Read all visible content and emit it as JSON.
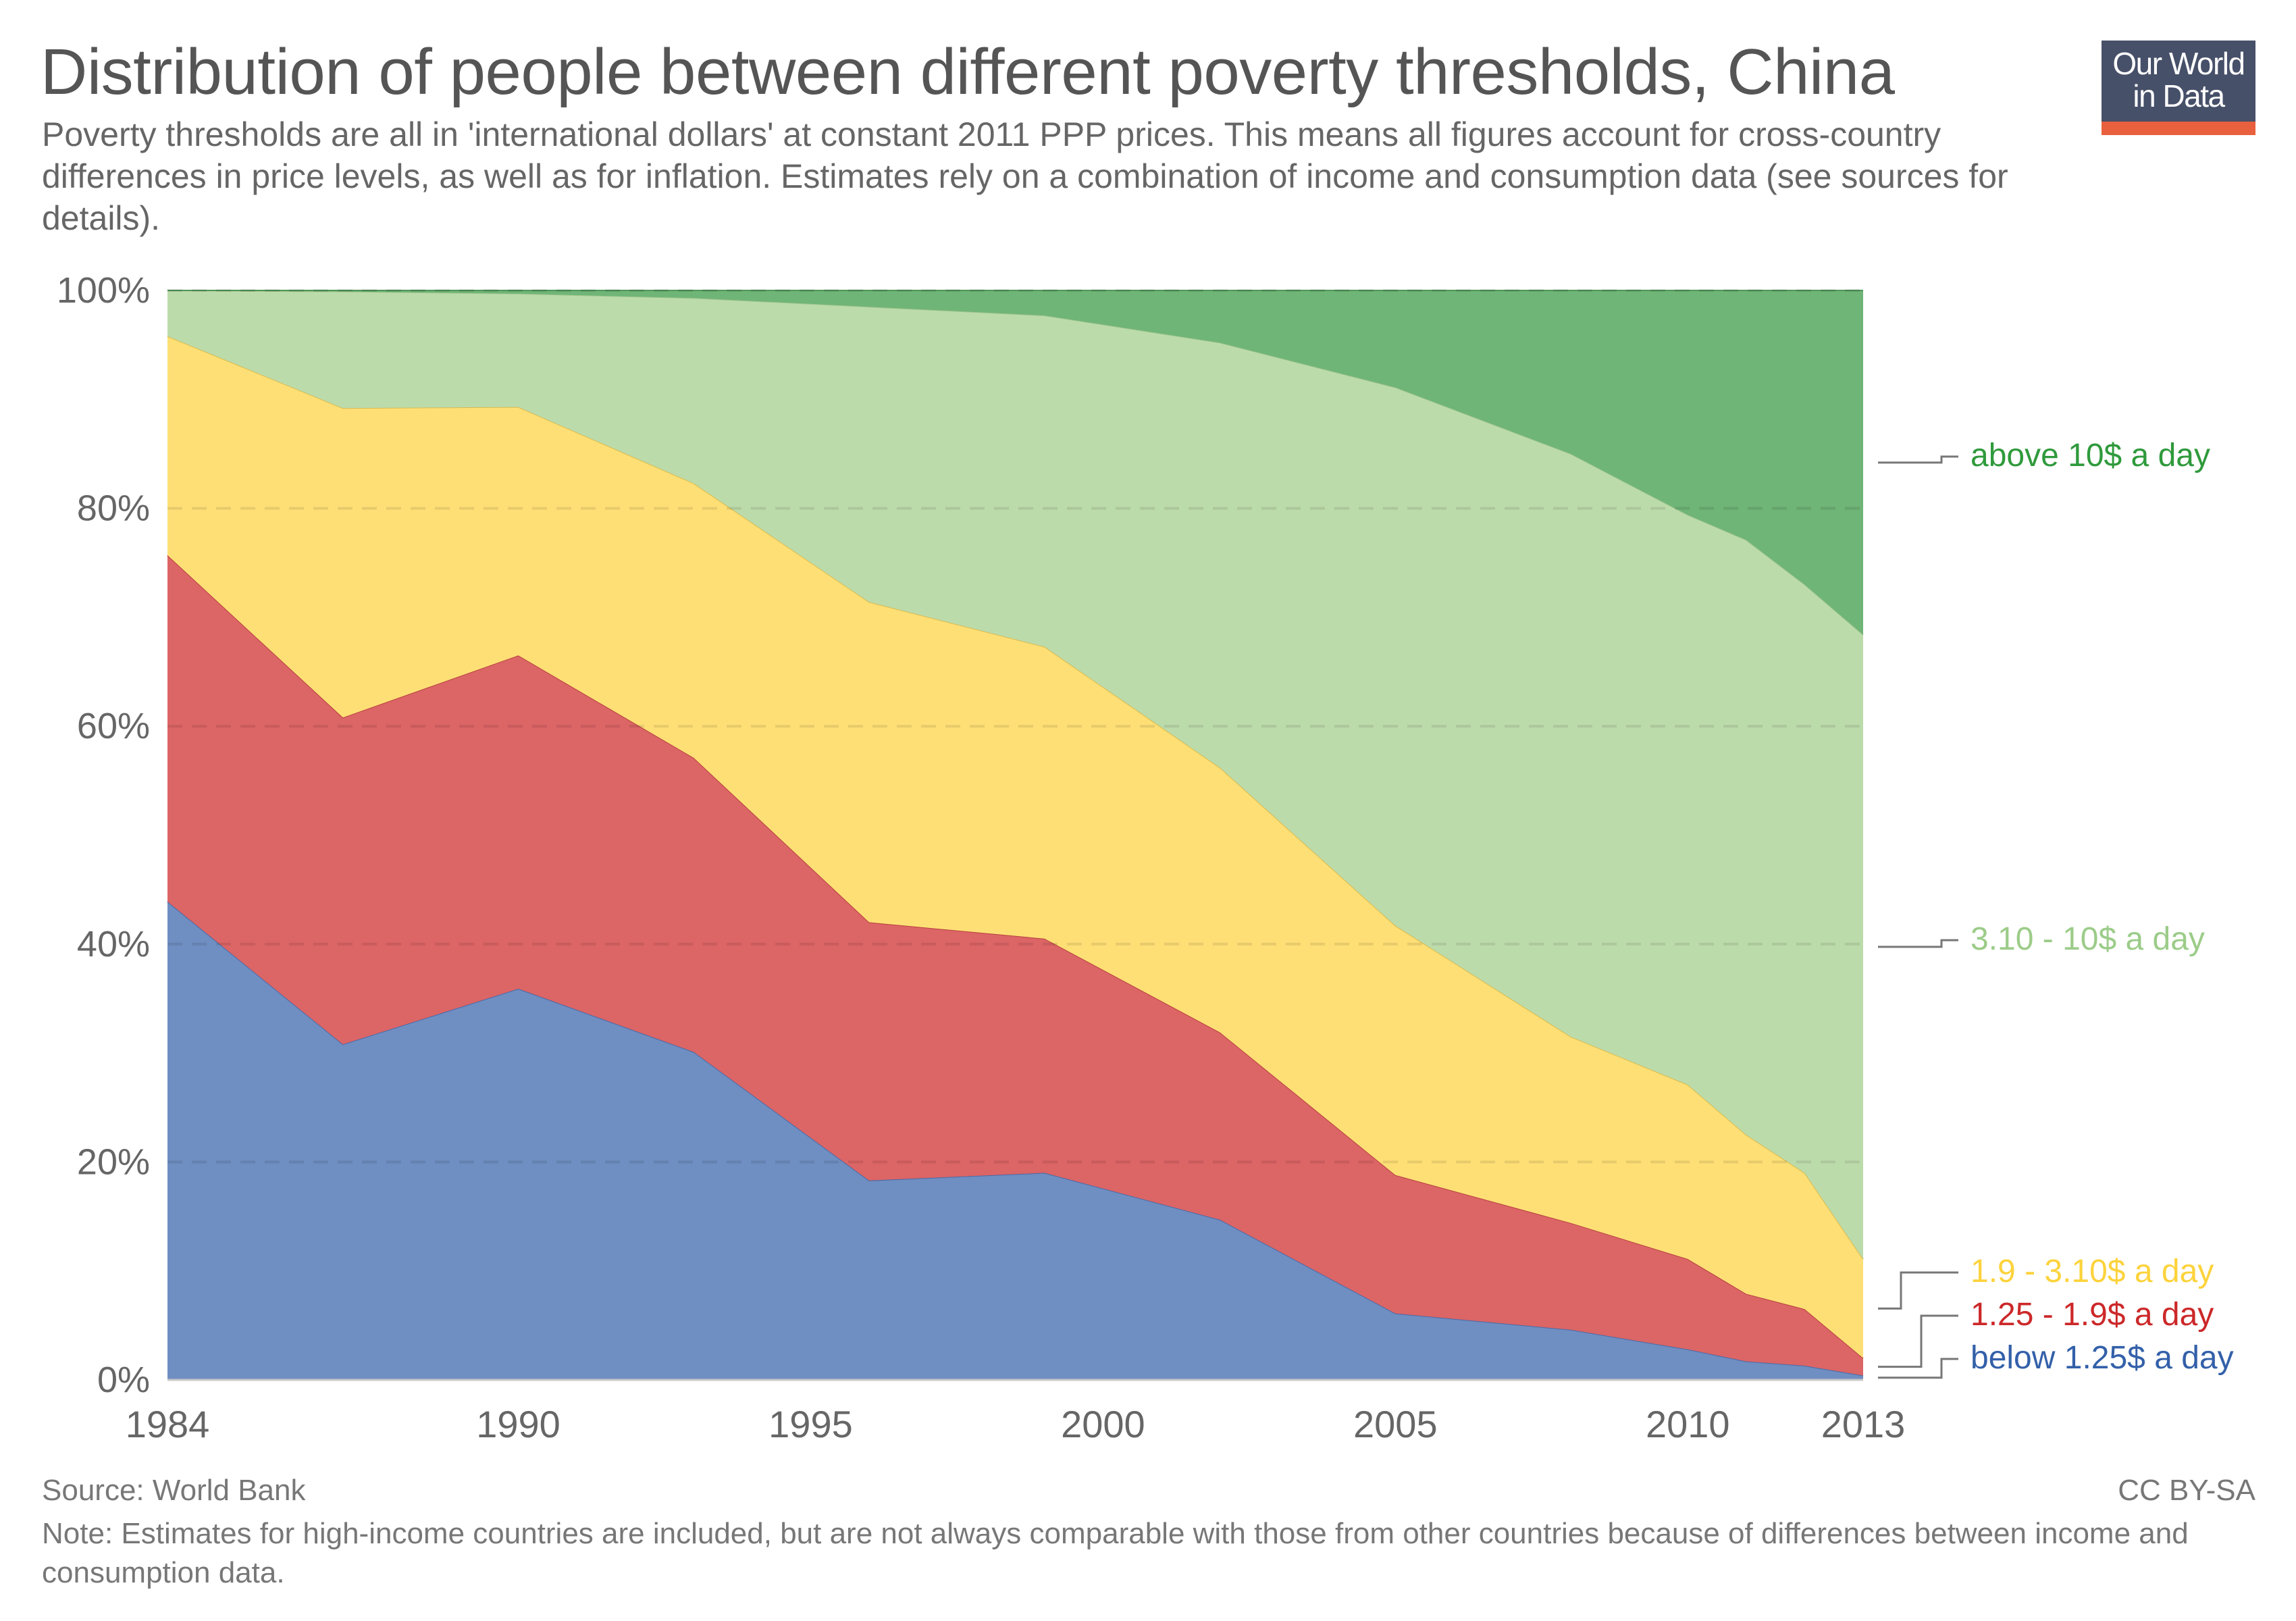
{
  "header": {
    "title": "Distribution of people between different poverty thresholds, China",
    "subtitle": "Poverty thresholds are all in 'international dollars' at constant 2011 PPP prices. This means all figures account for cross-country differences in price levels, as well as for inflation. Estimates rely on a combination of income and consumption data (see sources for details).",
    "logo_line1": "Our World",
    "logo_line2": "in Data"
  },
  "footer": {
    "source": "Source: World Bank",
    "license": "CC BY-SA",
    "note": "Note: Estimates for high-income countries are included, but are not always comparable with those from other countries because of differences between income and consumption data."
  },
  "colors": {
    "logo_navy": "#475069",
    "logo_accent": "#e8603d"
  },
  "chart_data": {
    "type": "area",
    "stacked": true,
    "title": "Distribution of people between different poverty thresholds, China",
    "xlabel": "",
    "ylabel": "",
    "x": [
      1984,
      1987,
      1990,
      1993,
      1996,
      1999,
      2002,
      2005,
      2008,
      2010,
      2011,
      2012,
      2013
    ],
    "xticks": [
      "1984",
      "1990",
      "1995",
      "2000",
      "2005",
      "2010",
      "2013"
    ],
    "xlim": [
      1984,
      2013
    ],
    "ylim": [
      0,
      100
    ],
    "yticks": [
      "0%",
      "20%",
      "40%",
      "60%",
      "80%",
      "100%"
    ],
    "grid": "horizontal-dashed",
    "legend": "right (inline labels)",
    "series": [
      {
        "name": "below 1.25$ a day",
        "fill": "#6f8ec2",
        "stroke": "#4a6aa6",
        "label_color": "#3360a9",
        "values": [
          43.9,
          30.8,
          35.9,
          30.1,
          18.3,
          19.0,
          14.7,
          6.1,
          4.6,
          2.8,
          1.7,
          1.3,
          0.4
        ]
      },
      {
        "name": "1.25 - 1.9$ a day",
        "fill": "#dc6566",
        "stroke": "#b6403f",
        "label_color": "#cc2829",
        "values": [
          31.8,
          30.0,
          30.6,
          27.0,
          23.7,
          21.5,
          17.2,
          12.7,
          9.8,
          8.3,
          6.2,
          5.2,
          1.6
        ]
      },
      {
        "name": "1.9 - 3.10$ a day",
        "fill": "#fedf76",
        "stroke": "#d8bb4e",
        "label_color": "#fdd33c",
        "values": [
          20.1,
          28.4,
          22.8,
          25.2,
          29.4,
          26.8,
          24.3,
          22.9,
          17.1,
          16.0,
          14.6,
          12.5,
          9.1
        ]
      },
      {
        "name": "3.10 - 10$ a day",
        "fill": "#bcdbab",
        "stroke": "#9fc58b",
        "label_color": "#9ccc89",
        "values": [
          4.2,
          10.7,
          10.4,
          17.0,
          27.1,
          30.4,
          39.0,
          49.4,
          53.5,
          52.3,
          54.6,
          54.0,
          57.3
        ]
      },
      {
        "name": "above 10$ a day",
        "fill": "#6fb577",
        "stroke": "#4f9657",
        "label_color": "#2f9a3c",
        "values": [
          0.0,
          0.1,
          0.3,
          0.7,
          1.5,
          2.3,
          4.8,
          8.9,
          15.0,
          20.6,
          22.9,
          27.0,
          31.6
        ]
      }
    ]
  }
}
